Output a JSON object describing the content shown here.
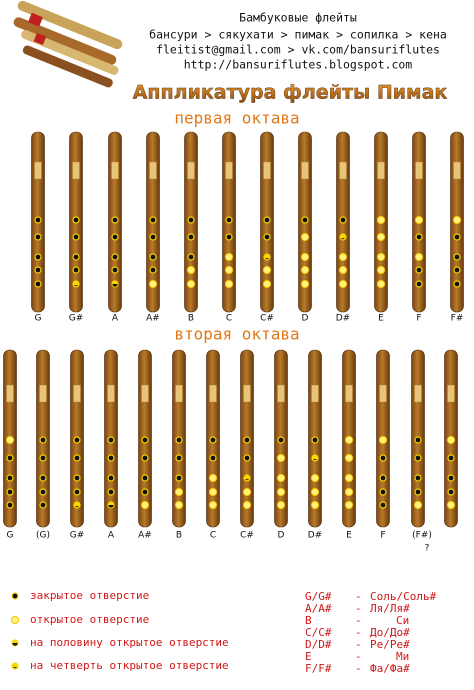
{
  "header": {
    "lines": [
      "Бамбуковые флейты",
      "бансури > сякухати > пимак > сопилка > кена",
      "fleitist@gmail.com > vk.com/bansuriflutes",
      "http://bansuriflutes.blogspot.com"
    ]
  },
  "title": "Аппликатура флейты Пимак",
  "octave1": {
    "heading": "первая октава",
    "notes": [
      "G",
      "G#",
      "A",
      "A#",
      "B",
      "C",
      "C#",
      "D",
      "D#",
      "E",
      "F",
      "F#"
    ]
  },
  "octave2": {
    "heading": "вторая октава",
    "notes": [
      "G",
      "(G)",
      "G#",
      "A",
      "A#",
      "B",
      "C",
      "C#",
      "D",
      "D#",
      "E",
      "F",
      "(F#)",
      null
    ],
    "note_mark": "?"
  },
  "legend": [
    "закрытое отверстие",
    "открытое отверстие",
    "на половину открытое отверстие",
    "на четверть открытое отверстие"
  ],
  "note_names": [
    {
      "note": "G/G#",
      "dash": "-",
      "name": "Соль/Соль#"
    },
    {
      "note": "A/A#",
      "dash": "-",
      "name": "Ля/Ля#"
    },
    {
      "note": "B",
      "dash": "-",
      "name": "Си"
    },
    {
      "note": "C/C#",
      "dash": "-",
      "name": "До/До#"
    },
    {
      "note": "D/D#",
      "dash": "-",
      "name": "Ре/Ре#"
    },
    {
      "note": "E",
      "dash": "-",
      "name": "Ми"
    },
    {
      "note": "F/F#",
      "dash": "-",
      "name": "Фа/Фа#"
    }
  ]
}
